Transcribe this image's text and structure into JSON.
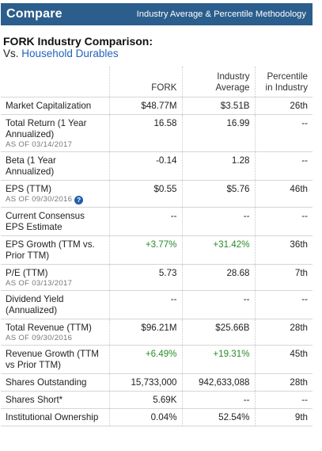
{
  "header": {
    "title": "Compare",
    "methodology_link": "Industry Average & Percentile Methodology"
  },
  "comparison": {
    "title": "FORK Industry Comparison:",
    "vs_prefix": "Vs.",
    "industry_link": "Household Durables"
  },
  "columns": {
    "symbol": "FORK",
    "industry_avg": "Industry Average",
    "percentile": "Percentile in Industry"
  },
  "rows": [
    {
      "label": "Market Capitalization",
      "asof": "",
      "fork": "$48.77M",
      "avg": "$3.51B",
      "pct": "26th"
    },
    {
      "label": "Total Return (1 Year Annualized)",
      "asof": "AS OF 03/14/2017",
      "fork": "16.58",
      "avg": "16.99",
      "pct": "--"
    },
    {
      "label": "Beta (1 Year Annualized)",
      "asof": "",
      "fork": "-0.14",
      "avg": "1.28",
      "pct": "--"
    },
    {
      "label": "EPS (TTM)",
      "asof": "AS OF 09/30/2016",
      "fork": "$0.55",
      "avg": "$5.76",
      "pct": "46th"
    },
    {
      "label": "Current Consensus EPS Estimate",
      "asof": "",
      "fork": "--",
      "avg": "--",
      "pct": "--"
    },
    {
      "label": "EPS Growth (TTM vs. Prior TTM)",
      "asof": "",
      "fork": "+3.77%",
      "avg": "+31.42%",
      "pct": "36th"
    },
    {
      "label": "P/E (TTM)",
      "asof": "AS OF 03/13/2017",
      "fork": "5.73",
      "avg": "28.68",
      "pct": "7th"
    },
    {
      "label": "Dividend Yield (Annualized)",
      "asof": "",
      "fork": "--",
      "avg": "--",
      "pct": "--"
    },
    {
      "label": "Total Revenue (TTM)",
      "asof": "AS OF 09/30/2016",
      "fork": "$96.21M",
      "avg": "$25.66B",
      "pct": "28th"
    },
    {
      "label": "Revenue Growth (TTM vs Prior TTM)",
      "asof": "",
      "fork": "+6.49%",
      "avg": "+19.31%",
      "pct": "45th"
    },
    {
      "label": "Shares Outstanding",
      "asof": "",
      "fork": "15,733,000",
      "avg": "942,633,088",
      "pct": "28th"
    },
    {
      "label": "Shares Short*",
      "asof": "",
      "fork": "5.69K",
      "avg": "--",
      "pct": "--"
    },
    {
      "label": "Institutional Ownership",
      "asof": "",
      "fork": "0.04%",
      "avg": "52.54%",
      "pct": "9th"
    }
  ],
  "help_icon": "?",
  "colors": {
    "header_bg": "#2b5e8c",
    "link": "#2363b8",
    "positive": "#2a8a2a",
    "help_icon": "#1f5fa8"
  }
}
